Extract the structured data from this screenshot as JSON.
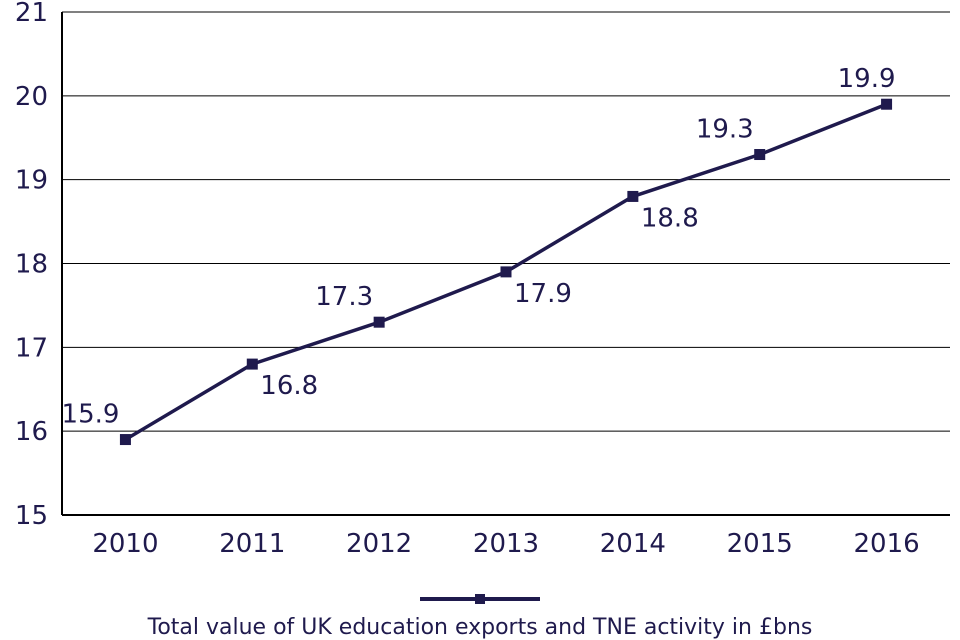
{
  "chart_data": {
    "type": "line",
    "categories": [
      "2010",
      "2011",
      "2012",
      "2013",
      "2014",
      "2015",
      "2016"
    ],
    "series": [
      {
        "name": "Total value of UK education exports and TNE activity in £bns",
        "values": [
          15.9,
          16.8,
          17.3,
          17.9,
          18.8,
          19.3,
          19.9
        ],
        "data_labels": [
          "15.9",
          "16.8",
          "17.3",
          "17.9",
          "18.8",
          "19.3",
          "19.9"
        ],
        "label_positions": [
          "above",
          "below",
          "above",
          "below",
          "below",
          "above",
          "above"
        ]
      }
    ],
    "ylim": [
      15,
      21
    ],
    "yticks": [
      "15",
      "16",
      "17",
      "18",
      "19",
      "20",
      "21"
    ],
    "grid": true,
    "legend_position": "bottom-center",
    "colors": {
      "line": "#1f1a4d",
      "grid": "#000000",
      "text": "#1f1a4d"
    }
  }
}
